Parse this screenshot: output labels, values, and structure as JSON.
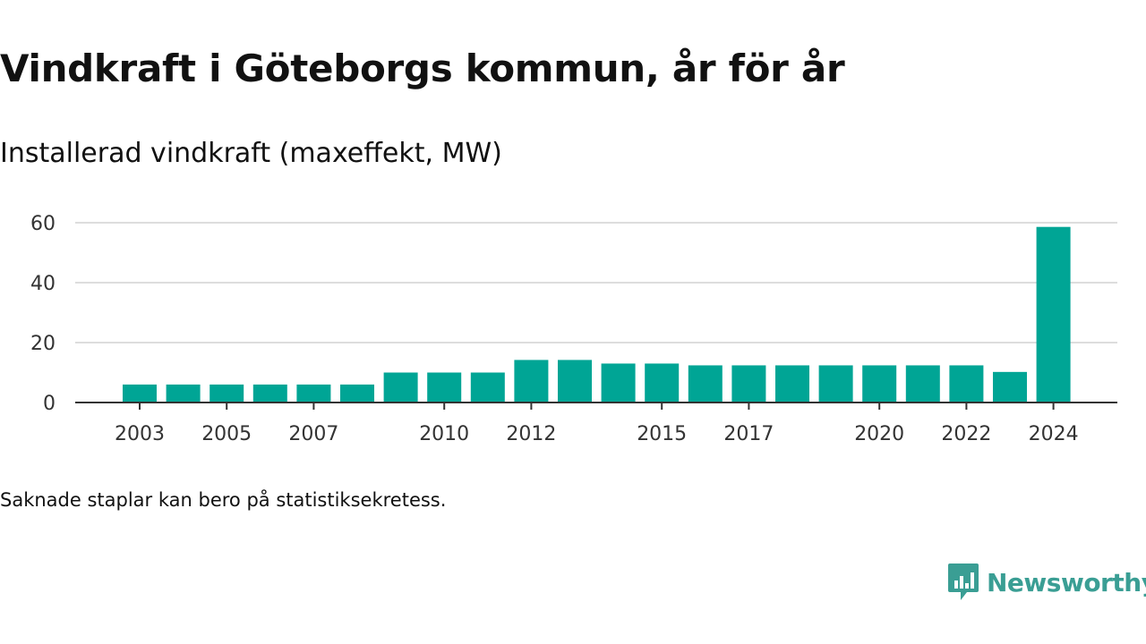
{
  "title": "Vindkraft i Göteborgs kommun, år för år",
  "subtitle": "Installerad vindkraft (maxeffekt, MW)",
  "note": "Saknade staplar kan bero på statistiksekretess.",
  "brand": {
    "name": "Newsworthy",
    "icon": "newsworthy-logo-icon",
    "color": "#3a9e94"
  },
  "colors": {
    "bar": "#00a595",
    "grid": "#dddddd",
    "axis": "#333333",
    "text": "#111111"
  },
  "chart_data": {
    "type": "bar",
    "title": "Vindkraft i Göteborgs kommun, år för år",
    "subtitle": "Installerad vindkraft (maxeffekt, MW)",
    "xlabel": "",
    "ylabel": "",
    "categories": [
      "2003",
      "2004",
      "2005",
      "2006",
      "2007",
      "2008",
      "2009",
      "2010",
      "2011",
      "2012",
      "2013",
      "2014",
      "2015",
      "2016",
      "2017",
      "2018",
      "2019",
      "2020",
      "2021",
      "2022",
      "2023",
      "2024"
    ],
    "values": [
      6,
      6,
      6,
      6,
      6,
      6,
      10,
      10,
      10,
      14.2,
      14.2,
      13,
      13,
      12.4,
      12.4,
      12.4,
      12.4,
      12.4,
      12.4,
      12.4,
      10.2,
      58.6
    ],
    "x_tick_labels": [
      "2003",
      "2005",
      "2007",
      "2010",
      "2012",
      "2015",
      "2017",
      "2020",
      "2022",
      "2024"
    ],
    "ylim": [
      0,
      60
    ],
    "y_ticks": [
      0,
      20,
      40,
      60
    ],
    "grid": true,
    "legend": "none"
  }
}
